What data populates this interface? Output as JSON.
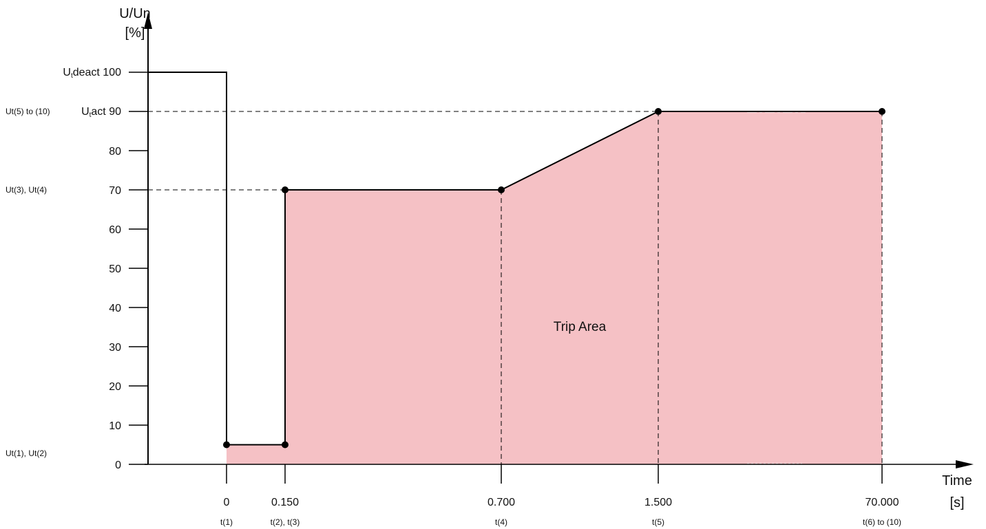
{
  "colors": {
    "trip_area": "#f5c1c5",
    "line": "#000000",
    "background": "#ffffff"
  },
  "chart_data": {
    "type": "line",
    "title": "",
    "ylabel_line1": "U/Un",
    "ylabel_line2": "[%]",
    "xlabel_line1": "Time",
    "xlabel_line2": "[s]",
    "ylim": [
      0,
      100
    ],
    "y_ticks": [
      0,
      10,
      20,
      30,
      40,
      50,
      60,
      70,
      80,
      90,
      100
    ],
    "y_tick_labels": [
      "0",
      "10",
      "20",
      "30",
      "40",
      "50",
      "60",
      "70",
      "80",
      "",
      ""
    ],
    "x_ticks": [
      {
        "label": "0",
        "sub": "t(1)"
      },
      {
        "label": "0.150",
        "sub": "t(2), t(3)"
      },
      {
        "label": "0.700",
        "sub": "t(4)"
      },
      {
        "label": "1.500",
        "sub": "t(5)"
      },
      {
        "label": "70.000",
        "sub": "t(6) to (10)"
      }
    ],
    "x_axis_scale": "non-linear, broken between 1.500 and 70.000",
    "u_deact": {
      "prefix": "U",
      "sub": "t",
      "suffix": "deact 100",
      "value": 100
    },
    "u_act": {
      "prefix": "U",
      "sub": "t",
      "suffix": "act 90",
      "value": 90
    },
    "left_annotations": [
      {
        "text": "Ut(5) to (10)",
        "y": 90
      },
      {
        "text": "Ut(3), Ut(4)",
        "y": 70
      },
      {
        "text": "Ut(1), Ut(2)",
        "y": 5
      }
    ],
    "series": [
      {
        "points": [
          {
            "x": "0",
            "y": 5
          },
          {
            "x": "0.150",
            "y": 5
          },
          {
            "x": "0.150",
            "y": 70
          },
          {
            "x": "0.700",
            "y": 70
          },
          {
            "x": "1.500",
            "y": 90
          },
          {
            "x": "70.000",
            "y": 90
          }
        ]
      }
    ],
    "pre_fault_level": 100,
    "area_label": "Trip Area",
    "grid": false
  }
}
